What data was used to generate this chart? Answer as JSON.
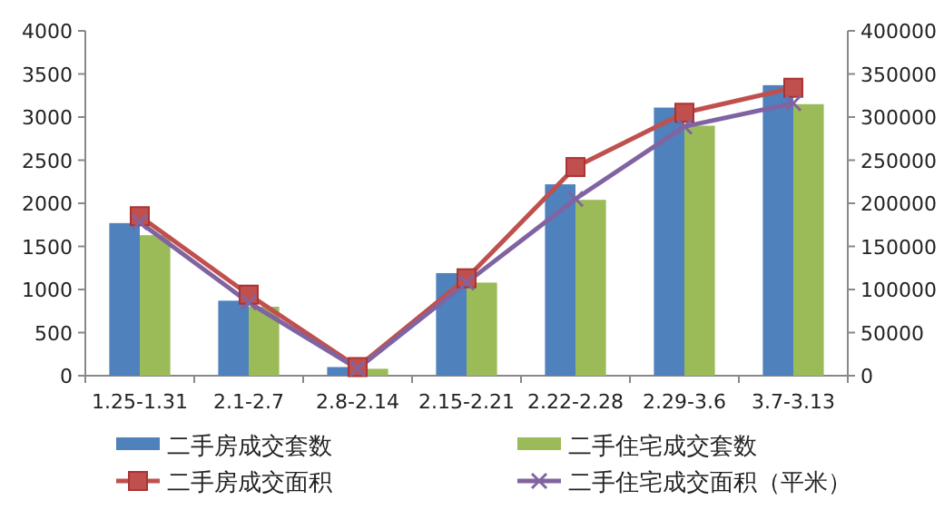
{
  "chart_data": {
    "type": "bar",
    "categories": [
      "1.25-1.31",
      "2.1-2.7",
      "2.8-2.14",
      "2.15-2.21",
      "2.22-2.28",
      "2.29-3.6",
      "3.7-3.13"
    ],
    "series": [
      {
        "name": "二手房成交套数",
        "color": "#4f81bd",
        "values": [
          1770,
          870,
          100,
          1190,
          2220,
          3110,
          3370
        ]
      },
      {
        "name": "二手住宅成交套数",
        "color": "#9bbb59",
        "values": [
          1630,
          800,
          80,
          1080,
          2040,
          2900,
          3150
        ]
      },
      {
        "name": "二手房成交面积",
        "type": "line",
        "axis": "y2",
        "marker": "square",
        "color": "#c0504d",
        "values": [
          185000,
          94000,
          10000,
          113000,
          242000,
          305000,
          334000
        ]
      },
      {
        "name": "二手住宅成交面积（平米）",
        "type": "line",
        "axis": "y2",
        "marker": "cross",
        "color": "#8064a2",
        "values": [
          178000,
          85000,
          8000,
          108000,
          205000,
          289000,
          316000
        ]
      }
    ],
    "ylim": [
      0,
      4000
    ],
    "yticks": [
      0,
      500,
      1000,
      1500,
      2000,
      2500,
      3000,
      3500,
      4000
    ],
    "y2lim": [
      0,
      400000
    ],
    "y2ticks": [
      0,
      50000,
      100000,
      150000,
      200000,
      250000,
      300000,
      350000,
      400000
    ],
    "legend": "bottom",
    "grid": false
  }
}
